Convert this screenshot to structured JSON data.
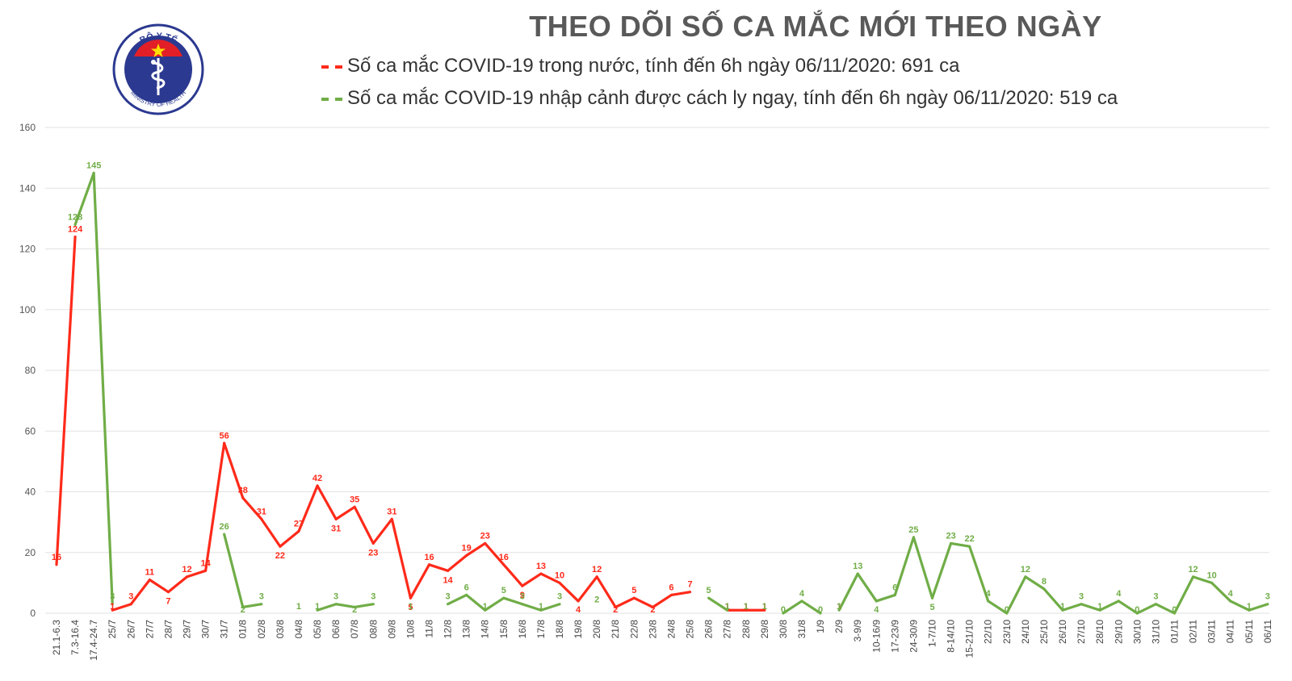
{
  "title": "THEO DÕI SỐ CA MẮC MỚI THEO NGÀY",
  "logo": {
    "top_text": "BỘ Y TẾ",
    "bottom_text": "MINISTRY OF HEALTH"
  },
  "colors": {
    "domestic": "#ff2a1a",
    "imported": "#70ad47",
    "grid": "#e2e2e2",
    "title": "#595959"
  },
  "chart_data": {
    "type": "line",
    "ylim": [
      0,
      160
    ],
    "yticks": [
      0,
      20,
      40,
      60,
      80,
      100,
      120,
      140,
      160
    ],
    "grid": true,
    "legend_position": "top",
    "categories": [
      "21.1-6.3",
      "7.3-16.4",
      "17.4-24.7",
      "25/7",
      "26/7",
      "27/7",
      "28/7",
      "29/7",
      "30/7",
      "31/7",
      "01/8",
      "02/8",
      "03/8",
      "04/8",
      "05/8",
      "06/8",
      "07/8",
      "08/8",
      "09/8",
      "10/8",
      "11/8",
      "12/8",
      "13/8",
      "14/8",
      "15/8",
      "16/8",
      "17/8",
      "18/8",
      "19/8",
      "20/8",
      "21/8",
      "22/8",
      "23/8",
      "24/8",
      "25/8",
      "26/8",
      "27/8",
      "28/8",
      "29/8",
      "30/8",
      "31/8",
      "1/9",
      "2/9",
      "3-9/9",
      "10-16/9",
      "17-23/9",
      "24-30/9",
      "1-7/10",
      "8-14/10",
      "15-21/10",
      "22/10",
      "23/10",
      "24/10",
      "25/10",
      "26/10",
      "27/10",
      "28/10",
      "29/10",
      "30/10",
      "31/10",
      "01/11",
      "02/11",
      "03/11",
      "04/11",
      "05/11",
      "06/11"
    ],
    "series": [
      {
        "name": "Số ca mắc COVID-19 trong nước, tính đến 6h ngày 06/11/2020: 691 ca",
        "values": [
          16,
          124,
          null,
          1,
          3,
          11,
          7,
          12,
          14,
          56,
          38,
          31,
          22,
          27,
          42,
          31,
          35,
          23,
          31,
          5,
          16,
          14,
          19,
          23,
          16,
          9,
          13,
          10,
          4,
          12,
          2,
          5,
          2,
          6,
          7,
          null,
          1,
          1,
          1,
          null,
          null,
          null,
          1,
          null,
          null,
          null,
          null,
          null,
          null,
          null,
          null,
          null,
          null,
          null,
          null,
          null,
          null,
          null,
          null,
          null,
          null,
          null,
          null,
          null,
          null,
          null
        ]
      },
      {
        "name": "Số ca mắc COVID-19 nhập cảnh được cách ly ngay, tính đến 6h ngày 06/11/2020: 519 ca",
        "values": [
          null,
          128,
          145,
          3,
          null,
          null,
          null,
          null,
          null,
          26,
          2,
          3,
          null,
          1,
          1,
          3,
          2,
          3,
          null,
          1,
          null,
          3,
          6,
          1,
          5,
          3,
          1,
          3,
          null,
          2,
          null,
          null,
          null,
          null,
          null,
          5,
          1,
          1,
          1,
          0,
          4,
          0,
          1,
          13,
          4,
          6,
          25,
          5,
          23,
          22,
          4,
          0,
          12,
          8,
          1,
          3,
          1,
          4,
          0,
          3,
          0,
          12,
          10,
          4,
          1,
          3
        ]
      }
    ]
  }
}
